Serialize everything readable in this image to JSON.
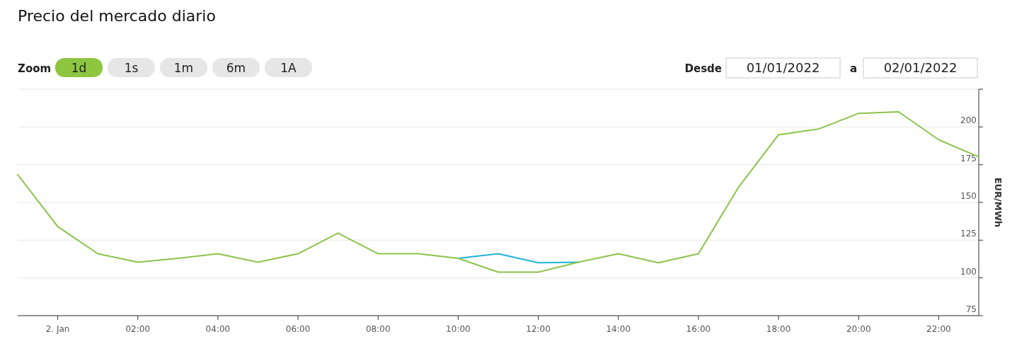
{
  "chart_data": {
    "type": "line",
    "title": "Precio del mercado diario",
    "ylabel": "EUR/MWh",
    "annotations": [
      "Zoom",
      "1d",
      "1s",
      "1m",
      "6m",
      "1A",
      "Desde",
      "01/01/2022",
      "a",
      "02/01/2022"
    ],
    "x": [
      -1,
      0,
      1,
      2,
      3,
      4,
      5,
      6,
      7,
      8,
      9,
      10,
      11,
      12,
      13,
      14,
      15,
      16,
      17,
      18,
      19,
      20,
      21,
      22,
      23
    ],
    "series": [
      {
        "color": "#1fb3d6",
        "values": [
          null,
          null,
          null,
          null,
          null,
          null,
          null,
          null,
          null,
          null,
          null,
          113,
          116,
          110,
          110.4,
          null,
          null,
          null,
          null,
          null,
          null,
          null,
          null,
          null,
          null
        ]
      },
      {
        "color": "#8bc34a",
        "values": [
          168.4,
          134,
          116,
          110.4,
          113,
          116,
          110.4,
          116,
          129.7,
          116,
          116,
          113,
          103.8,
          103.8,
          110.4,
          116,
          110,
          116,
          160,
          194.8,
          198.6,
          209,
          210,
          191.5,
          180.2
        ]
      }
    ],
    "xlim": [
      -1,
      23
    ],
    "xticks": [
      {
        "value": 0,
        "label": "2. Jan"
      },
      {
        "value": 2,
        "label": "02:00"
      },
      {
        "value": 4,
        "label": "04:00"
      },
      {
        "value": 6,
        "label": "06:00"
      },
      {
        "value": 8,
        "label": "08:00"
      },
      {
        "value": 10,
        "label": "10:00"
      },
      {
        "value": 12,
        "label": "12:00"
      },
      {
        "value": 14,
        "label": "14:00"
      },
      {
        "value": 16,
        "label": "16:00"
      },
      {
        "value": 18,
        "label": "18:00"
      },
      {
        "value": 20,
        "label": "20:00"
      },
      {
        "value": 22,
        "label": "22:00"
      }
    ],
    "ylim": [
      75,
      225
    ],
    "yticks": [
      75,
      100,
      125,
      150,
      175,
      200,
      {
        "value": 225,
        "label": null
      }
    ],
    "grid": "y",
    "marker": "none",
    "line_style": "solid"
  }
}
